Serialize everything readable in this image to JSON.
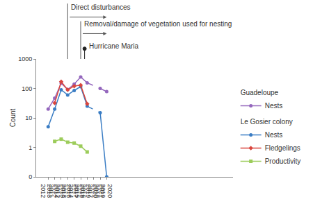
{
  "chart_data": {
    "type": "line",
    "categories": [
      "2011\n2012",
      "2012\n2013",
      "2013\n2014",
      "2014\n2015",
      "2015\n2016",
      "2016\n2017",
      "2017\n2018",
      "2018\n2019",
      "2019\n2020",
      "2020\n2021"
    ],
    "series": [
      {
        "name": "Nests",
        "group": "Guadeloupe",
        "color": "#9467bd",
        "marker": "circle",
        "line_style": "solid",
        "values": [
          20,
          47,
          150,
          92,
          140,
          245,
          155,
          null,
          100,
          78
        ]
      },
      {
        "name": "Nests",
        "group": "Le Gosier colony",
        "color": "#3a7dc4",
        "marker": "circle",
        "line_style": "solid",
        "values": [
          5,
          20,
          90,
          60,
          85,
          115,
          25,
          null,
          15,
          0
        ]
      },
      {
        "name": "Fledgelings",
        "group": "Le Gosier colony",
        "color": "#d9453d",
        "marker": "diamond",
        "line_style": "solid",
        "values": [
          null,
          32,
          170,
          90,
          120,
          130,
          30,
          null,
          null,
          null
        ]
      },
      {
        "name": "Productivity",
        "group": "Le Gosier colony",
        "color": "#9ccc5a",
        "marker": "square",
        "line_style": "solid",
        "values": [
          null,
          1.6,
          1.9,
          1.5,
          1.4,
          1.1,
          0.7,
          null,
          null,
          null
        ]
      }
    ],
    "ylabel": "Count",
    "ylim": [
      0,
      1000
    ],
    "yticks": [
      0,
      1,
      10,
      100,
      1000
    ],
    "log": "y",
    "grid": false,
    "legend": "right",
    "annotations": [
      {
        "text": "Direct disturbances",
        "from": "2014\n2015",
        "to": "2020\n2021"
      },
      {
        "text": "Removal/damage of vegetation used for nesting",
        "from": "2016\n2017",
        "to": "2020\n2021"
      },
      {
        "text": "Hurricane Maria",
        "x": "2017\n2018"
      }
    ]
  }
}
